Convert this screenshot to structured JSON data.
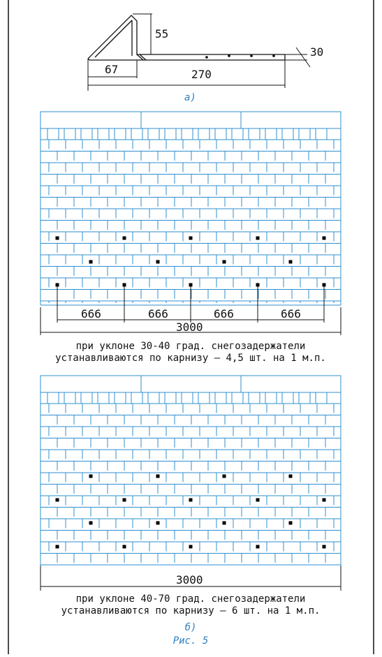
{
  "colors": {
    "tile": "#2f8fcf",
    "line": "#111111",
    "dot": "#000000",
    "caption_blue": "#2f7fbf"
  },
  "top_detail": {
    "height_label": "55",
    "base_label": "67",
    "length_label": "270",
    "thickness_label": "30",
    "part_label": "а)"
  },
  "diagram_a": {
    "segment_labels": [
      "666",
      "666",
      "666",
      "666"
    ],
    "total_label": "3000",
    "caption_line1": "при уклоне 30-40 град. снегозадержатели",
    "caption_line2": "устанавливаются по карнизу – 4,5 шт. на 1 м.п."
  },
  "diagram_b": {
    "total_label": "3000",
    "caption_line1": "при уклоне 40-70 град. снегозадержатели",
    "caption_line2": "устанавливаются по карнизу – 6 шт. на 1 м.п.",
    "part_label": "б)"
  },
  "figure_label": "Рис. 5"
}
